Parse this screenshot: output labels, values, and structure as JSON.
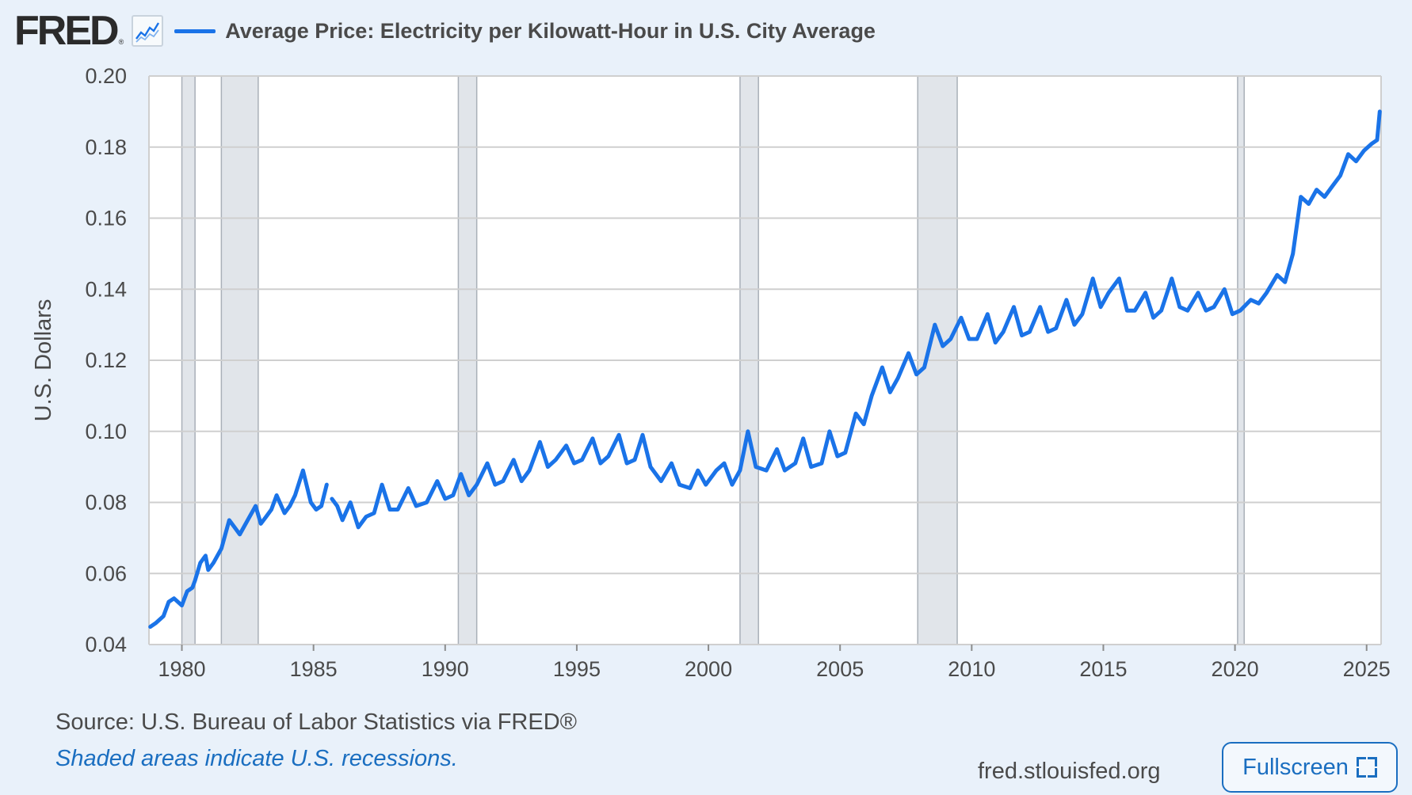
{
  "header": {
    "logo_text": "FRED",
    "logo_mark": "®",
    "logo_icon": "line-chart-icon",
    "series_title": "Average Price: Electricity per Kilowatt-Hour in U.S. City Average"
  },
  "footer": {
    "source": "Source: U.S. Bureau of Labor Statistics via FRED®",
    "note": "Shaded areas indicate U.S. recessions.",
    "site": "fred.stlouisfed.org",
    "fullscreen_label": "Fullscreen",
    "fullscreen_icon": "expand-icon"
  },
  "colors": {
    "line": "#1a73e8",
    "recession": "#e1e5ea",
    "background": "#e9f1fa",
    "plot_background": "#ffffff",
    "grid": "#cfcfcf"
  },
  "chart_data": {
    "type": "line",
    "title": "Average Price: Electricity per Kilowatt-Hour in U.S. City Average",
    "ylabel": "U.S. Dollars",
    "xlabel": "",
    "xlim": [
      1978.75,
      2025.55
    ],
    "ylim": [
      0.04,
      0.2
    ],
    "yticks": [
      0.04,
      0.06,
      0.08,
      0.1,
      0.12,
      0.14,
      0.16,
      0.18,
      0.2
    ],
    "ytick_labels": [
      "0.04",
      "0.06",
      "0.08",
      "0.10",
      "0.12",
      "0.14",
      "0.16",
      "0.18",
      "0.20"
    ],
    "xticks": [
      1980,
      1985,
      1990,
      1995,
      2000,
      2005,
      2010,
      2015,
      2020,
      2025
    ],
    "xtick_labels": [
      "1980",
      "1985",
      "1990",
      "1995",
      "2000",
      "2005",
      "2010",
      "2015",
      "2020",
      "2025"
    ],
    "grid": true,
    "recessions": [
      [
        1980.0,
        1980.5
      ],
      [
        1981.5,
        1982.9
      ],
      [
        1990.5,
        1991.2
      ],
      [
        2001.2,
        2001.9
      ],
      [
        2007.95,
        2009.45
      ],
      [
        2020.1,
        2020.35
      ]
    ],
    "series": [
      {
        "name": "Average Price: Electricity per Kilowatt-Hour in U.S. City Average",
        "segments": [
          {
            "x": [
              1978.8,
              1979.0,
              1979.3,
              1979.5,
              1979.7,
              1980.0,
              1980.2,
              1980.4,
              1980.5,
              1980.7,
              1980.9,
              1981.0,
              1981.2,
              1981.5,
              1981.8,
              1982.0,
              1982.2,
              1982.5,
              1982.8,
              1983.0,
              1983.2,
              1983.4,
              1983.6,
              1983.9,
              1984.1,
              1984.3,
              1984.6,
              1984.9,
              1985.1,
              1985.3,
              1985.5
            ],
            "y": [
              0.045,
              0.046,
              0.048,
              0.052,
              0.053,
              0.051,
              0.055,
              0.056,
              0.058,
              0.063,
              0.065,
              0.061,
              0.063,
              0.067,
              0.075,
              0.073,
              0.071,
              0.075,
              0.079,
              0.074,
              0.076,
              0.078,
              0.082,
              0.077,
              0.079,
              0.082,
              0.089,
              0.08,
              0.078,
              0.079,
              0.085
            ]
          },
          {
            "x": [
              1985.7,
              1985.9,
              1986.1,
              1986.4,
              1986.7,
              1987.0,
              1987.3,
              1987.6,
              1987.9,
              1988.2,
              1988.6,
              1988.9,
              1989.3,
              1989.7,
              1990.0,
              1990.3,
              1990.6,
              1990.9,
              1991.2,
              1991.6,
              1991.9,
              1992.2,
              1992.6,
              1992.9,
              1993.2,
              1993.6,
              1993.9,
              1994.2,
              1994.6,
              1994.9,
              1995.2,
              1995.6,
              1995.9,
              1996.2,
              1996.6,
              1996.9,
              1997.2,
              1997.5,
              1997.8,
              1998.2,
              1998.6,
              1998.9,
              1999.3,
              1999.6,
              1999.9,
              2000.3,
              2000.6,
              2000.9,
              2001.2,
              2001.5,
              2001.8,
              2002.2,
              2002.6,
              2002.9,
              2003.3,
              2003.6,
              2003.9,
              2004.3,
              2004.6,
              2004.9,
              2005.2,
              2005.6,
              2005.9,
              2006.2,
              2006.6,
              2006.9,
              2007.2,
              2007.6,
              2007.9,
              2008.2,
              2008.6,
              2008.9,
              2009.2,
              2009.6,
              2009.9,
              2010.2,
              2010.6,
              2010.9,
              2011.2,
              2011.6,
              2011.9,
              2012.2,
              2012.6,
              2012.9,
              2013.2,
              2013.6,
              2013.9,
              2014.2,
              2014.6,
              2014.9,
              2015.2,
              2015.6,
              2015.9,
              2016.2,
              2016.6,
              2016.9,
              2017.2,
              2017.6,
              2017.9,
              2018.2,
              2018.6,
              2018.9,
              2019.2,
              2019.6,
              2019.9,
              2020.2,
              2020.6,
              2020.9,
              2021.2,
              2021.6,
              2021.9,
              2022.2,
              2022.5,
              2022.8,
              2023.1,
              2023.4,
              2023.7,
              2024.0,
              2024.3,
              2024.6,
              2024.9,
              2025.2,
              2025.4,
              2025.5
            ],
            "y": [
              0.081,
              0.079,
              0.075,
              0.08,
              0.073,
              0.076,
              0.077,
              0.085,
              0.078,
              0.078,
              0.084,
              0.079,
              0.08,
              0.086,
              0.081,
              0.082,
              0.088,
              0.082,
              0.085,
              0.091,
              0.085,
              0.086,
              0.092,
              0.086,
              0.089,
              0.097,
              0.09,
              0.092,
              0.096,
              0.091,
              0.092,
              0.098,
              0.091,
              0.093,
              0.099,
              0.091,
              0.092,
              0.099,
              0.09,
              0.086,
              0.091,
              0.085,
              0.084,
              0.089,
              0.085,
              0.089,
              0.091,
              0.085,
              0.089,
              0.1,
              0.09,
              0.089,
              0.095,
              0.089,
              0.091,
              0.098,
              0.09,
              0.091,
              0.1,
              0.093,
              0.094,
              0.105,
              0.102,
              0.11,
              0.118,
              0.111,
              0.115,
              0.122,
              0.116,
              0.118,
              0.13,
              0.124,
              0.126,
              0.132,
              0.126,
              0.126,
              0.133,
              0.125,
              0.128,
              0.135,
              0.127,
              0.128,
              0.135,
              0.128,
              0.129,
              0.137,
              0.13,
              0.133,
              0.143,
              0.135,
              0.139,
              0.143,
              0.134,
              0.134,
              0.139,
              0.132,
              0.134,
              0.143,
              0.135,
              0.134,
              0.139,
              0.134,
              0.135,
              0.14,
              0.133,
              0.134,
              0.137,
              0.136,
              0.139,
              0.144,
              0.142,
              0.15,
              0.166,
              0.164,
              0.168,
              0.166,
              0.169,
              0.172,
              0.178,
              0.176,
              0.179,
              0.181,
              0.182,
              0.19
            ]
          }
        ]
      }
    ]
  }
}
